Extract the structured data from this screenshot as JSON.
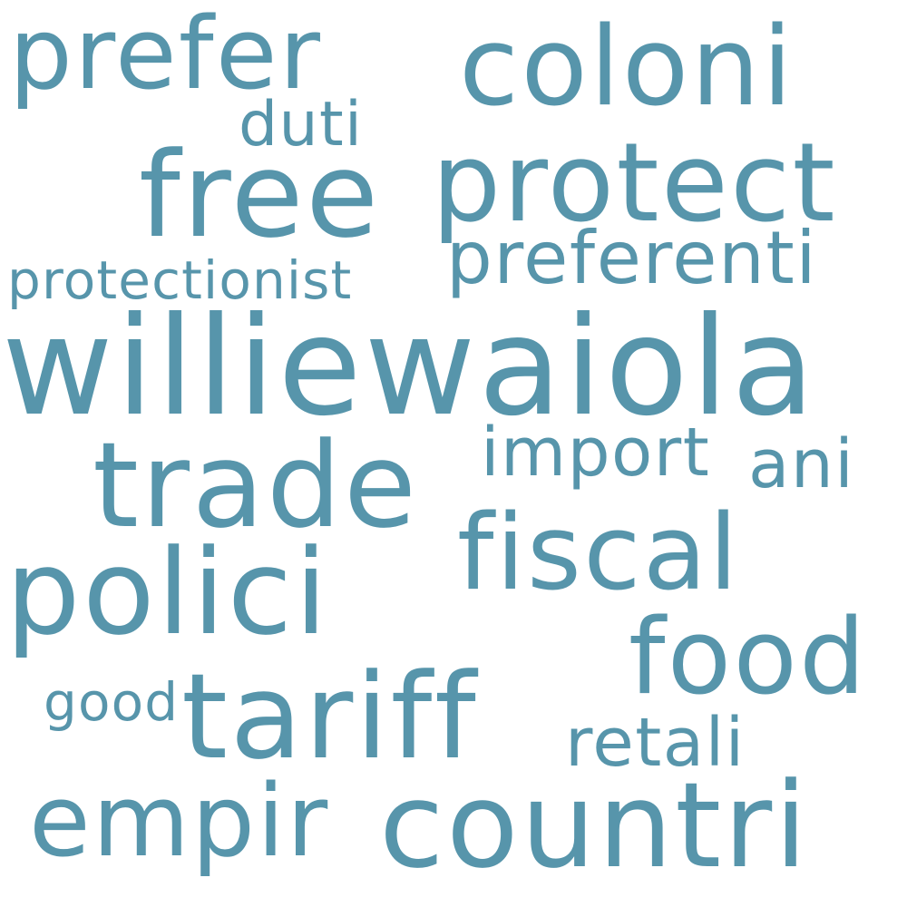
{
  "colors": {
    "text": "#5795ab",
    "background": "#ffffff"
  },
  "words": {
    "williewaiola": "williewaiola",
    "protect": "protect",
    "coloni": "coloni",
    "prefer": "prefer",
    "free": "free",
    "trade": "trade",
    "polici": "polici",
    "fiscal": "fiscal",
    "tariff": "tariff",
    "countri": "countri",
    "empir": "empir",
    "food": "food",
    "preferenti": "preferenti",
    "protectionist": "protectionist",
    "duti": "duti",
    "import": "import",
    "ani": "ani",
    "retali": "retali",
    "good": "good"
  }
}
